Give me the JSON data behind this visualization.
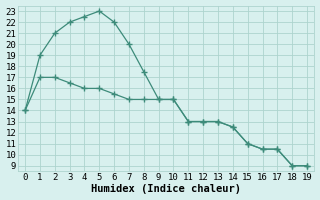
{
  "line1_x": [
    0,
    1,
    2,
    3,
    4,
    5,
    6,
    7,
    8,
    9,
    10,
    11,
    12,
    13,
    14,
    15,
    16,
    17,
    18,
    19
  ],
  "line1_y": [
    14,
    19,
    21,
    22,
    22.5,
    23,
    22,
    20,
    17.5,
    15,
    15,
    13,
    13,
    13,
    12.5,
    11,
    10.5,
    10.5,
    9,
    9
  ],
  "line2_x": [
    0,
    1,
    2,
    3,
    4,
    5,
    6,
    7,
    8,
    9,
    10,
    11,
    12,
    13,
    14,
    15,
    16,
    17,
    18,
    19
  ],
  "line2_y": [
    14,
    17,
    17,
    16.5,
    16,
    16,
    15.5,
    15,
    15,
    15,
    15,
    13,
    13,
    13,
    12.5,
    11,
    10.5,
    10.5,
    9,
    9
  ],
  "line_color": "#3d8b7a",
  "bg_color": "#d8f0ee",
  "grid_color": "#aed4ce",
  "xlabel": "Humidex (Indice chaleur)",
  "ylim": [
    8.5,
    23.5
  ],
  "xlim": [
    -0.5,
    19.5
  ],
  "yticks": [
    9,
    10,
    11,
    12,
    13,
    14,
    15,
    16,
    17,
    18,
    19,
    20,
    21,
    22,
    23
  ],
  "xticks": [
    0,
    1,
    2,
    3,
    4,
    5,
    6,
    7,
    8,
    9,
    10,
    11,
    12,
    13,
    14,
    15,
    16,
    17,
    18,
    19
  ],
  "marker": "+",
  "markersize": 4,
  "linewidth": 0.9,
  "tick_fontsize": 6.5,
  "xlabel_fontsize": 7.5
}
